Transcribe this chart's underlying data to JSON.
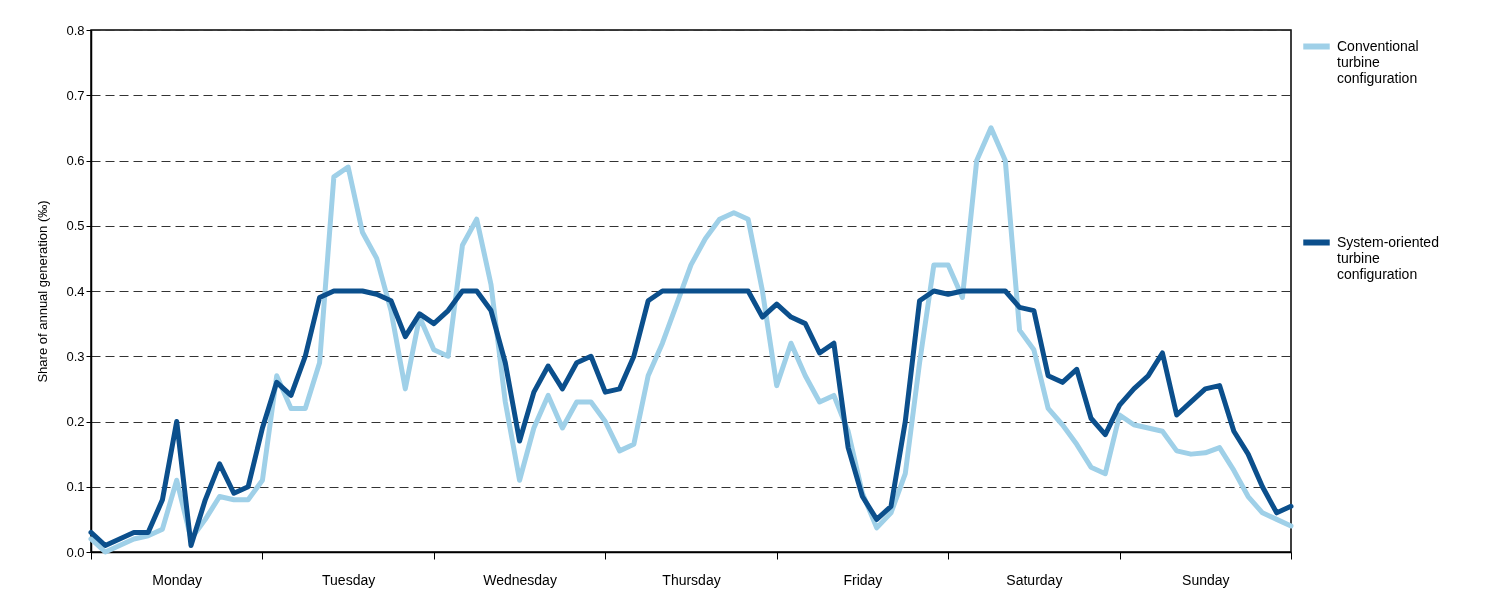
{
  "chart_data": {
    "type": "line",
    "ylabel": "Share of annual generation (‰)",
    "categories": [
      null,
      null,
      null,
      null,
      null,
      null,
      "Monday",
      null,
      null,
      null,
      null,
      null,
      null,
      null,
      null,
      null,
      null,
      null,
      "Tuesday",
      null,
      null,
      null,
      null,
      null,
      null,
      null,
      null,
      null,
      null,
      null,
      "Wednesday",
      null,
      null,
      null,
      null,
      null,
      null,
      null,
      null,
      null,
      null,
      null,
      "Thursday",
      null,
      null,
      null,
      null,
      null,
      null,
      null,
      null,
      null,
      null,
      null,
      "Friday",
      null,
      null,
      null,
      null,
      null,
      null,
      null,
      null,
      null,
      null,
      null,
      "Saturday",
      null,
      null,
      null,
      null,
      null,
      null,
      null,
      null,
      null,
      null,
      null,
      "Sunday",
      null,
      null,
      null,
      null,
      null,
      null
    ],
    "ylim": [
      0,
      0.8
    ],
    "yticks": [
      {
        "value": 0,
        "label": "0.0"
      },
      0.1,
      0.2,
      0.3,
      0.4,
      0.5,
      0.6,
      0.7,
      0.8
    ],
    "grid": "y",
    "legend": "right",
    "line_style": "solid",
    "marker": "none",
    "series": [
      {
        "name": "Conventional turbine configuration",
        "color": "#9fd0e8",
        "values": [
          0.02,
          0.0,
          0.01,
          0.02,
          0.025,
          0.035,
          0.11,
          0.02,
          0.05,
          0.085,
          0.08,
          0.08,
          0.11,
          0.27,
          0.22,
          0.22,
          0.29,
          0.575,
          0.59,
          0.49,
          0.45,
          0.37,
          0.25,
          0.36,
          0.31,
          0.3,
          0.47,
          0.51,
          0.41,
          0.23,
          0.11,
          0.19,
          0.24,
          0.19,
          0.23,
          0.23,
          0.2,
          0.155,
          0.165,
          0.27,
          0.32,
          0.38,
          0.44,
          0.48,
          0.51,
          0.52,
          0.51,
          0.4,
          0.255,
          0.32,
          0.27,
          0.23,
          0.24,
          0.185,
          0.09,
          0.037,
          0.06,
          0.12,
          0.29,
          0.44,
          0.44,
          0.39,
          0.6,
          0.65,
          0.6,
          0.34,
          0.31,
          0.22,
          0.195,
          0.165,
          0.13,
          0.12,
          0.21,
          0.195,
          0.19,
          0.185,
          0.155,
          0.15,
          0.152,
          0.16,
          0.125,
          0.085,
          0.06,
          0.05,
          0.04
        ]
      },
      {
        "name": "System-oriented turbine configuration",
        "color": "#0b4f8c",
        "values": [
          0.03,
          0.01,
          0.02,
          0.03,
          0.03,
          0.08,
          0.2,
          0.01,
          0.08,
          0.135,
          0.09,
          0.1,
          0.19,
          0.26,
          0.24,
          0.3,
          0.39,
          0.4,
          0.4,
          0.4,
          0.395,
          0.385,
          0.33,
          0.365,
          0.35,
          0.37,
          0.4,
          0.4,
          0.37,
          0.29,
          0.17,
          0.245,
          0.285,
          0.25,
          0.29,
          0.3,
          0.245,
          0.25,
          0.3,
          0.385,
          0.4,
          0.4,
          0.4,
          0.4,
          0.4,
          0.4,
          0.4,
          0.36,
          0.38,
          0.36,
          0.35,
          0.305,
          0.32,
          0.16,
          0.085,
          0.05,
          0.07,
          0.2,
          0.385,
          0.4,
          0.395,
          0.4,
          0.4,
          0.4,
          0.4,
          0.375,
          0.37,
          0.27,
          0.26,
          0.28,
          0.205,
          0.18,
          0.225,
          0.25,
          0.27,
          0.305,
          0.21,
          0.23,
          0.25,
          0.255,
          0.185,
          0.15,
          0.1,
          0.06,
          0.07
        ]
      }
    ]
  }
}
